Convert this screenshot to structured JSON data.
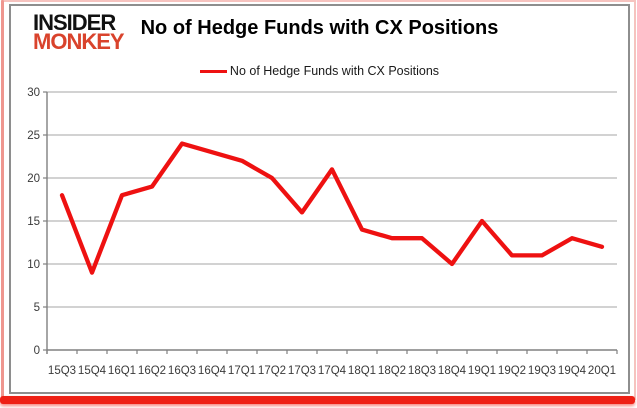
{
  "logo": {
    "line1": "INSIDER",
    "line2": "MONKEY"
  },
  "header": {
    "title": "No of Hedge Funds with CX Positions"
  },
  "legend": {
    "label": "No of Hedge Funds with CX Positions"
  },
  "colors": {
    "line": "#ee1111",
    "logo_black": "#111111",
    "logo_red": "#d9432c",
    "grid": "#a6a6a6",
    "axis": "#808080",
    "tick_text": "#3a3a3a",
    "frame_side": "#ef968f",
    "frame_bottom": "#ee2015",
    "panel_border": "#8e8e8e"
  },
  "chart_data": {
    "type": "line",
    "title": "No of Hedge Funds with CX Positions",
    "categories": [
      "15Q3",
      "15Q4",
      "16Q1",
      "16Q2",
      "16Q3",
      "16Q4",
      "17Q1",
      "17Q2",
      "17Q3",
      "17Q4",
      "18Q1",
      "18Q2",
      "18Q3",
      "18Q4",
      "19Q1",
      "19Q2",
      "19Q3",
      "19Q4",
      "20Q1"
    ],
    "series": [
      {
        "name": "No of Hedge Funds with CX Positions",
        "values": [
          18,
          9,
          18,
          19,
          24,
          23,
          22,
          20,
          16,
          21,
          14,
          13,
          13,
          10,
          15,
          11,
          11,
          13,
          12
        ]
      }
    ],
    "xlabel": "",
    "ylabel": "",
    "ylim": [
      0,
      30
    ],
    "yticks": [
      0,
      5,
      10,
      15,
      20,
      25,
      30
    ],
    "grid": true,
    "legend_position": "top-center"
  }
}
